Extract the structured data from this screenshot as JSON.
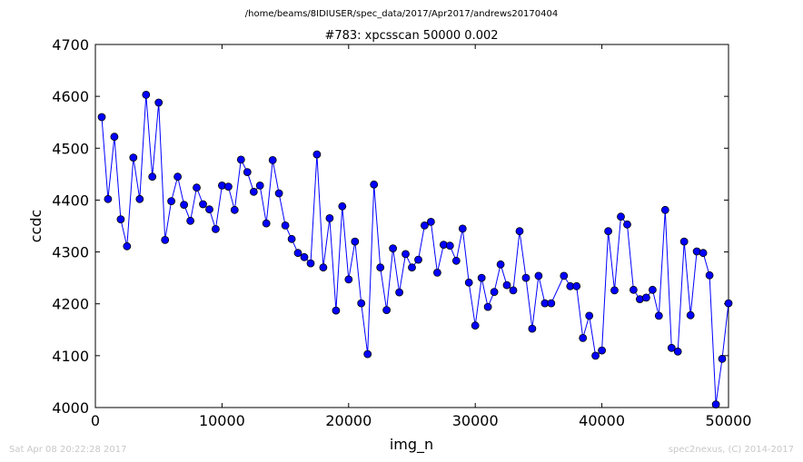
{
  "header": {
    "path": "/home/beams/8IDIUSER/spec_data/2017/Apr2017/andrews20170404"
  },
  "footer": {
    "left": "Sat Apr 08 20:22:28 2017",
    "right": "spec2nexus, (C) 2014-2017"
  },
  "chart_data": {
    "type": "line",
    "title": "#783: xpcsscan 50000 0.002",
    "xlabel": "img_n",
    "ylabel": "ccdc",
    "xlim": [
      0,
      50000
    ],
    "ylim": [
      4000,
      4700
    ],
    "xticks": [
      0,
      10000,
      20000,
      30000,
      40000,
      50000
    ],
    "xtick_labels": [
      "0",
      "10000",
      "20000",
      "30000",
      "40000",
      "50000"
    ],
    "yticks": [
      4000,
      4100,
      4200,
      4300,
      4400,
      4500,
      4600,
      4700
    ],
    "ytick_labels": [
      "4000",
      "4100",
      "4200",
      "4300",
      "4400",
      "4500",
      "4600",
      "4700"
    ],
    "grid": false,
    "legend": "none",
    "series": [
      {
        "color": "#0000ff",
        "marker": "circle",
        "x": [
          500,
          1000,
          1500,
          2000,
          2500,
          3000,
          3500,
          4000,
          4500,
          5000,
          5500,
          6000,
          6500,
          7000,
          7500,
          8000,
          8500,
          9000,
          9500,
          10000,
          10500,
          11000,
          11500,
          12000,
          12500,
          13000,
          13500,
          14000,
          14500,
          15000,
          15500,
          16000,
          16500,
          17000,
          17500,
          18000,
          18500,
          19000,
          19500,
          20000,
          20500,
          21000,
          21500,
          22000,
          22500,
          23000,
          23500,
          24000,
          24500,
          25000,
          25500,
          26000,
          26500,
          27000,
          27500,
          28000,
          28500,
          29000,
          29500,
          30000,
          30500,
          31000,
          31500,
          32000,
          32500,
          33000,
          33500,
          34000,
          34500,
          35000,
          35500,
          36000,
          37000,
          37500,
          38000,
          38500,
          39000,
          39500,
          40000,
          40500,
          41000,
          41500,
          42000,
          42500,
          43000,
          43500,
          44000,
          44500,
          45000,
          45500,
          46000,
          46500,
          47000,
          47500,
          48000,
          48500,
          49000,
          49500,
          50000
        ],
        "y": [
          4560,
          4402,
          4522,
          4363,
          4311,
          4482,
          4402,
          4603,
          4445,
          4588,
          4323,
          4398,
          4445,
          4391,
          4360,
          4424,
          4392,
          4382,
          4344,
          4428,
          4426,
          4381,
          4478,
          4454,
          4416,
          4428,
          4355,
          4477,
          4413,
          4351,
          4325,
          4298,
          4290,
          4278,
          4488,
          4270,
          4365,
          4187,
          4388,
          4247,
          4320,
          4201,
          4103,
          4430,
          4270,
          4188,
          4307,
          4222,
          4296,
          4270,
          4285,
          4351,
          4358,
          4260,
          4314,
          4312,
          4283,
          4345,
          4241,
          4158,
          4250,
          4194,
          4223,
          4276,
          4236,
          4226,
          4340,
          4250,
          4152,
          4254,
          4201,
          4201,
          4254,
          4234,
          4234,
          4134,
          4177,
          4100,
          4110,
          4340,
          4226,
          4368,
          4353,
          4227,
          4209,
          4212,
          4227,
          4177,
          4381,
          4115,
          4108,
          4320,
          4178,
          4301,
          4298,
          4255,
          4006,
          4094,
          4201
        ]
      }
    ]
  }
}
